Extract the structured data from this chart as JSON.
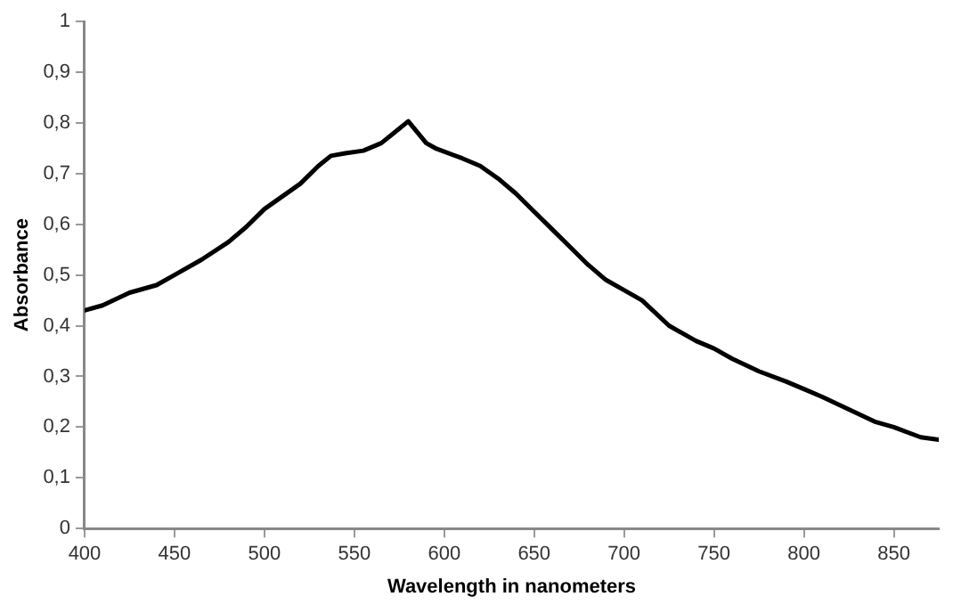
{
  "chart_data": {
    "type": "line",
    "xlabel": "Wavelength in nanometers",
    "ylabel": "Absorbance",
    "x": [
      400,
      410,
      425,
      440,
      450,
      465,
      480,
      490,
      500,
      510,
      520,
      530,
      537,
      545,
      555,
      565,
      572,
      580,
      590,
      595,
      610,
      620,
      630,
      640,
      650,
      660,
      670,
      680,
      690,
      700,
      710,
      725,
      740,
      750,
      760,
      775,
      790,
      800,
      810,
      825,
      840,
      850,
      865,
      875
    ],
    "series": [
      {
        "color": "#000000",
        "values": [
          0.43,
          0.44,
          0.465,
          0.48,
          0.5,
          0.53,
          0.565,
          0.595,
          0.63,
          0.655,
          0.68,
          0.715,
          0.735,
          0.74,
          0.745,
          0.76,
          0.78,
          0.803,
          0.76,
          0.75,
          0.73,
          0.715,
          0.69,
          0.66,
          0.625,
          0.59,
          0.555,
          0.52,
          0.49,
          0.47,
          0.45,
          0.4,
          0.37,
          0.355,
          0.335,
          0.31,
          0.29,
          0.275,
          0.26,
          0.235,
          0.21,
          0.2,
          0.18,
          0.175
        ]
      }
    ],
    "xlim": [
      400,
      875
    ],
    "xticks": [
      400,
      450,
      500,
      550,
      600,
      650,
      700,
      750,
      800,
      850
    ],
    "ylim": [
      0,
      1
    ],
    "yticks": [
      0,
      {
        "value": 0.1,
        "label": "0,1"
      },
      {
        "value": 0.2,
        "label": "0,2"
      },
      {
        "value": 0.3,
        "label": "0,3"
      },
      {
        "value": 0.4,
        "label": "0,4"
      },
      {
        "value": 0.5,
        "label": "0,5"
      },
      {
        "value": 0.6,
        "label": "0,6"
      },
      {
        "value": 0.7,
        "label": "0,7"
      },
      {
        "value": 0.8,
        "label": "0,8"
      },
      {
        "value": 0.9,
        "label": "0,9"
      },
      1
    ],
    "grid": false,
    "legend": false,
    "marker": "none",
    "line_style": "solid"
  }
}
